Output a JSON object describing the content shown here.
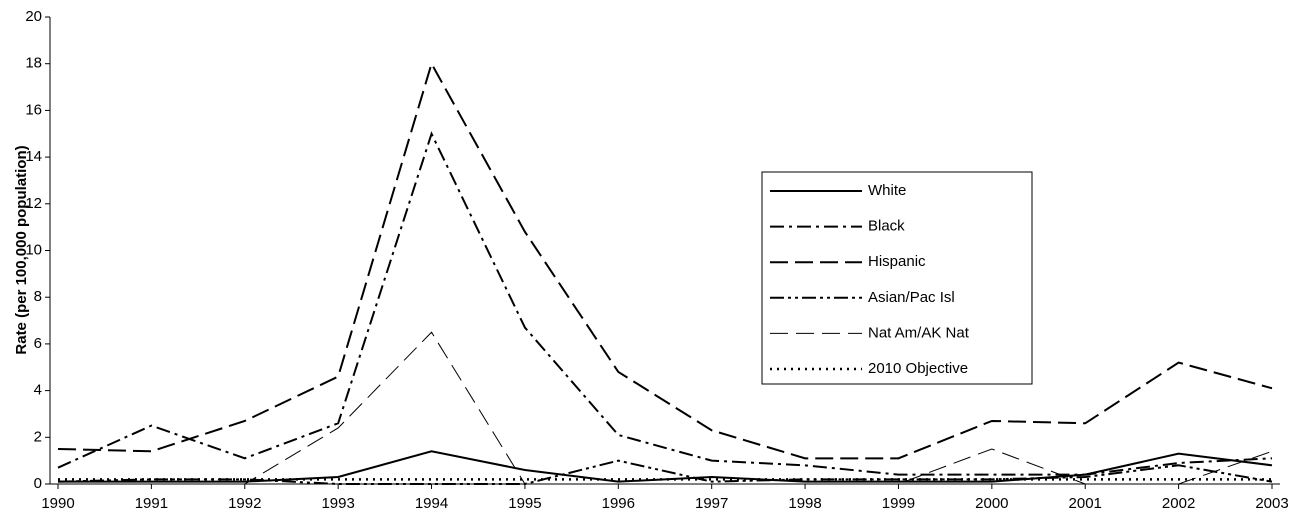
{
  "chart_data": {
    "type": "line",
    "y_label": "Rate (per 100,000 population)",
    "categories": [
      "1990",
      "1991",
      "1992",
      "1993",
      "1994",
      "1995",
      "1996",
      "1997",
      "1998",
      "1999",
      "2000",
      "2001",
      "2002",
      "2003"
    ],
    "ylim": [
      0,
      20
    ],
    "yticks": [
      0,
      2,
      4,
      6,
      8,
      10,
      12,
      14,
      16,
      18,
      20
    ],
    "grid": false,
    "legend": "right",
    "series": [
      {
        "name": "White",
        "color": "#000000",
        "dash": "solid",
        "width": 2,
        "values": [
          0.1,
          0.1,
          0.1,
          0.3,
          1.4,
          0.6,
          0.1,
          0.3,
          0.1,
          0.1,
          0.1,
          0.4,
          1.3,
          0.8
        ]
      },
      {
        "name": "Black",
        "color": "#000000",
        "dash": "14 5 3 5",
        "width": 2,
        "values": [
          0.7,
          2.5,
          1.1,
          2.6,
          15.0,
          6.7,
          2.1,
          1.0,
          0.8,
          0.4,
          0.4,
          0.4,
          0.9,
          1.1
        ]
      },
      {
        "name": "Hispanic",
        "color": "#000000",
        "dash": "18 7",
        "width": 2,
        "values": [
          1.5,
          1.4,
          2.7,
          4.6,
          18.0,
          10.8,
          4.8,
          2.3,
          1.1,
          1.1,
          2.7,
          2.6,
          5.2,
          4.1
        ]
      },
      {
        "name": "Asian/Pac Isl",
        "color": "#000000",
        "dash": "14 4 3 4 3 4",
        "width": 2,
        "values": [
          0.1,
          0.2,
          0.2,
          0,
          0,
          0,
          1.0,
          0.1,
          0.2,
          0.2,
          0.2,
          0.3,
          0.8,
          0.1
        ]
      },
      {
        "name": "Nat Am/AK Nat",
        "color": "#000000",
        "dash": "18 8",
        "width": 1,
        "values": [
          0,
          0,
          0,
          2.4,
          6.5,
          0,
          0,
          0,
          0,
          0,
          1.5,
          0,
          0,
          1.4
        ]
      },
      {
        "name": "2010 Objective",
        "color": "#000000",
        "dash": "2 5",
        "width": 2.5,
        "values": [
          0.2,
          0.2,
          0.2,
          0.2,
          0.2,
          0.2,
          0.2,
          0.2,
          0.2,
          0.2,
          0.2,
          0.2,
          0.2,
          0.2
        ]
      }
    ]
  }
}
